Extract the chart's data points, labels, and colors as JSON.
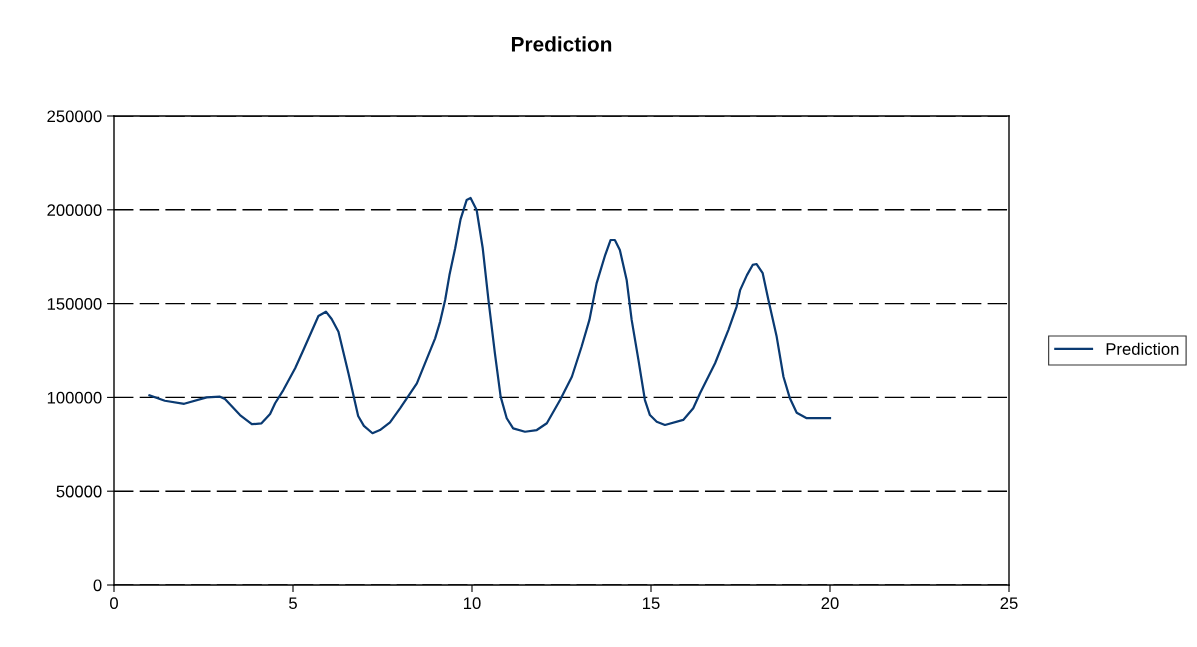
{
  "chart_data": {
    "type": "line",
    "title": "Prediction",
    "xlim": [
      0,
      25
    ],
    "xticks": [
      0,
      5,
      10,
      15,
      20,
      25
    ],
    "ylim": [
      0,
      250000
    ],
    "yticks": [
      0,
      50000,
      100000,
      150000,
      200000,
      250000
    ],
    "grid": "y",
    "legend": "right",
    "marker": "none",
    "line_style": "solid",
    "series": [
      {
        "name": "Prediction",
        "color": "#0a3a72",
        "x": [
          0.99,
          1.42,
          1.96,
          2.59,
          2.96,
          3.1,
          3.52,
          3.85,
          4.12,
          4.36,
          4.5,
          4.73,
          5.06,
          5.29,
          5.71,
          5.92,
          6.08,
          6.27,
          6.55,
          6.82,
          6.98,
          7.22,
          7.43,
          7.71,
          7.99,
          8.46,
          8.97,
          9.11,
          9.25,
          9.37,
          9.53,
          9.68,
          9.85,
          9.96,
          10.13,
          10.3,
          10.46,
          10.64,
          10.8,
          10.97,
          11.15,
          11.48,
          11.81,
          12.09,
          12.46,
          12.79,
          13.06,
          13.28,
          13.48,
          13.72,
          13.87,
          13.99,
          14.13,
          14.32,
          14.46,
          14.65,
          14.83,
          14.97,
          15.16,
          15.39,
          15.9,
          16.18,
          16.37,
          16.79,
          17.16,
          17.39,
          17.49,
          17.68,
          17.84,
          17.95,
          18.12,
          18.28,
          18.51,
          18.7,
          18.88,
          19.07,
          19.35,
          20.0
        ],
        "values": [
          101100,
          98200,
          96600,
          100000,
          100400,
          99100,
          90600,
          85700,
          86200,
          91200,
          96900,
          103900,
          115500,
          125300,
          143400,
          145700,
          141800,
          135000,
          112800,
          90100,
          84800,
          80900,
          82600,
          86700,
          94200,
          107500,
          131500,
          140400,
          151900,
          165200,
          179500,
          194900,
          205200,
          206300,
          199900,
          179500,
          151900,
          123500,
          100400,
          88900,
          83500,
          81700,
          82600,
          86200,
          98600,
          111000,
          127000,
          141300,
          160800,
          175900,
          183900,
          183900,
          178600,
          162600,
          141300,
          119900,
          98600,
          90600,
          87000,
          85300,
          88000,
          94200,
          102200,
          118200,
          135900,
          148300,
          157200,
          165200,
          170600,
          171100,
          166200,
          151900,
          132400,
          111000,
          99500,
          91800,
          88900,
          88900
        ]
      }
    ]
  }
}
